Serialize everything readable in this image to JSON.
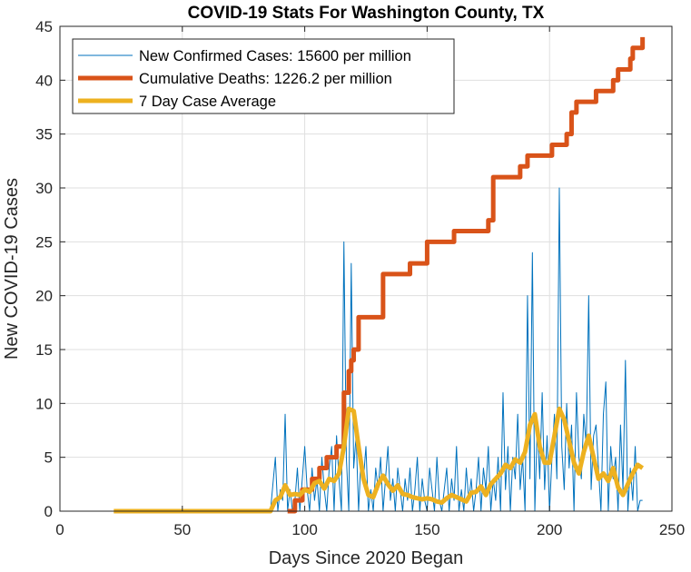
{
  "chart_data": {
    "type": "line",
    "title": "COVID-19 Stats For Washington County, TX",
    "xlabel": "Days Since 2020 Began",
    "ylabel": "New COVID-19 Cases",
    "xlim": [
      0,
      250
    ],
    "ylim": [
      0,
      45
    ],
    "xticks": [
      0,
      50,
      100,
      150,
      200,
      250
    ],
    "yticks": [
      0,
      5,
      10,
      15,
      20,
      25,
      30,
      35,
      40,
      45
    ],
    "grid": true,
    "legend_position": "top-left",
    "series": [
      {
        "name": "New Confirmed Cases: 15600 per million",
        "color": "#0072BD",
        "line_width": "thin",
        "x": [
          22,
          86,
          88,
          89,
          90,
          91,
          92,
          93,
          94,
          95,
          96,
          97,
          98,
          99,
          100,
          101,
          102,
          103,
          104,
          105,
          106,
          107,
          108,
          109,
          110,
          111,
          112,
          113,
          114,
          115,
          116,
          117,
          118,
          119,
          120,
          121,
          122,
          123,
          124,
          125,
          126,
          127,
          128,
          129,
          130,
          131,
          132,
          133,
          134,
          135,
          136,
          137,
          138,
          139,
          140,
          141,
          142,
          143,
          144,
          145,
          146,
          147,
          148,
          149,
          150,
          151,
          152,
          153,
          154,
          155,
          156,
          157,
          158,
          159,
          160,
          161,
          162,
          163,
          164,
          165,
          166,
          167,
          168,
          169,
          170,
          171,
          172,
          173,
          174,
          175,
          176,
          177,
          178,
          179,
          180,
          181,
          182,
          183,
          184,
          185,
          186,
          187,
          188,
          189,
          190,
          191,
          192,
          193,
          194,
          195,
          196,
          197,
          198,
          199,
          200,
          201,
          202,
          203,
          204,
          205,
          206,
          207,
          208,
          209,
          210,
          211,
          212,
          213,
          214,
          215,
          216,
          217,
          218,
          219,
          220,
          221,
          222,
          223,
          224,
          225,
          226,
          227,
          228,
          229,
          230,
          231,
          232,
          233,
          234,
          235,
          236,
          237,
          238
        ],
        "y": [
          0,
          0,
          5,
          0,
          2,
          1,
          9,
          0,
          2,
          0,
          1,
          4,
          0,
          3,
          6,
          2,
          0,
          4,
          1,
          3,
          0,
          5,
          2,
          0,
          4,
          6,
          0,
          7,
          3,
          0,
          25,
          5,
          0,
          23,
          4,
          7,
          0,
          5,
          3,
          6,
          0,
          2,
          0,
          4,
          2,
          5,
          0,
          3,
          6,
          1,
          3,
          0,
          4,
          2,
          0,
          3,
          1,
          4,
          0,
          2,
          5,
          0,
          3,
          1,
          0,
          4,
          2,
          0,
          5,
          1,
          0,
          2,
          4,
          0,
          3,
          1,
          6,
          0,
          2,
          0,
          4,
          1,
          3,
          0,
          2,
          5,
          0,
          4,
          2,
          6,
          0,
          3,
          1,
          5,
          0,
          11,
          2,
          6,
          0,
          5,
          3,
          9,
          2,
          5,
          0,
          20,
          3,
          24,
          0,
          8,
          3,
          11,
          2,
          7,
          0,
          5,
          9,
          3,
          30,
          6,
          2,
          10,
          4,
          8,
          0,
          11,
          5,
          3,
          9,
          6,
          20,
          2,
          7,
          8,
          4,
          0,
          9,
          12,
          0,
          6,
          3,
          5,
          0,
          8,
          2,
          14,
          0,
          4,
          1,
          6,
          0,
          1,
          1
        ]
      },
      {
        "name": "Cumulative Deaths: 1226.2 per million",
        "color": "#D95319",
        "line_width": "thick",
        "step": true,
        "x": [
          93,
          95,
          96,
          98,
          99,
          101,
          103,
          104,
          106,
          108,
          109,
          111,
          113,
          114,
          116,
          117,
          118,
          119,
          120,
          121,
          122,
          123,
          127,
          128,
          131,
          132,
          133,
          138,
          139,
          142,
          143,
          146,
          147,
          150,
          160,
          161,
          167,
          168,
          169,
          172,
          173,
          174,
          175,
          176,
          177,
          178,
          180,
          182,
          183,
          186,
          187,
          188,
          189,
          190,
          191,
          192,
          193,
          194,
          197,
          198,
          201,
          202,
          203,
          205,
          206,
          207,
          209,
          210,
          211,
          212,
          213,
          214,
          218,
          219,
          220,
          223,
          224,
          225,
          226,
          227,
          228,
          229,
          231,
          232,
          233,
          234,
          235,
          236,
          237,
          238
        ],
        "y": [
          0,
          0,
          1,
          1,
          2,
          2,
          3,
          3,
          4,
          4,
          5,
          5,
          6,
          6,
          11,
          11,
          13,
          14,
          15,
          15,
          18,
          18,
          18,
          18,
          18,
          22,
          22,
          22,
          22,
          22,
          23,
          23,
          23,
          25,
          25,
          26,
          26,
          26,
          26,
          26,
          26,
          26,
          27,
          27,
          31,
          31,
          31,
          31,
          31,
          31,
          31,
          32,
          32,
          32,
          33,
          33,
          33,
          33,
          33,
          33,
          34,
          34,
          34,
          34,
          34,
          35,
          37,
          37,
          38,
          38,
          38,
          38,
          38,
          39,
          39,
          39,
          39,
          39,
          40,
          40,
          41,
          41,
          41,
          41,
          42,
          43,
          43,
          43,
          43,
          44
        ]
      },
      {
        "name": "7 Day Case Average",
        "color": "#EDB120",
        "line_width": "thick",
        "x": [
          22,
          86,
          88,
          90,
          92,
          94,
          96,
          98,
          100,
          102,
          104,
          106,
          108,
          110,
          112,
          114,
          116,
          118,
          120,
          122,
          124,
          126,
          128,
          130,
          132,
          134,
          136,
          138,
          140,
          142,
          144,
          146,
          148,
          150,
          152,
          154,
          156,
          158,
          160,
          162,
          164,
          166,
          168,
          170,
          172,
          174,
          176,
          178,
          180,
          182,
          184,
          186,
          188,
          190,
          192,
          194,
          196,
          198,
          200,
          202,
          204,
          206,
          208,
          210,
          212,
          214,
          216,
          218,
          220,
          222,
          224,
          226,
          228,
          230,
          232,
          234,
          236,
          238
        ],
        "y": [
          0,
          0,
          1,
          1.3,
          2.4,
          1.5,
          1.6,
          1.5,
          2,
          1.8,
          2.6,
          2.8,
          2.1,
          3,
          2.8,
          3.5,
          6,
          9.5,
          9.3,
          6,
          3,
          1.5,
          1.3,
          2.5,
          3.3,
          2.5,
          1.9,
          2.4,
          1.6,
          1.5,
          1.3,
          1.2,
          1.1,
          1.2,
          1.1,
          0.9,
          0.8,
          1.2,
          1.5,
          1.3,
          1.1,
          0.9,
          1.7,
          1.8,
          2.3,
          1.5,
          2.5,
          3,
          3.5,
          4.3,
          4,
          4.8,
          4.5,
          5.5,
          8,
          9,
          6,
          4.5,
          4.5,
          7,
          9.5,
          8.5,
          6.5,
          4.5,
          3.5,
          5.5,
          7,
          5,
          3,
          3.5,
          2.8,
          4,
          2.2,
          1.5,
          2.5,
          3.5,
          4.3,
          4
        ]
      }
    ]
  }
}
